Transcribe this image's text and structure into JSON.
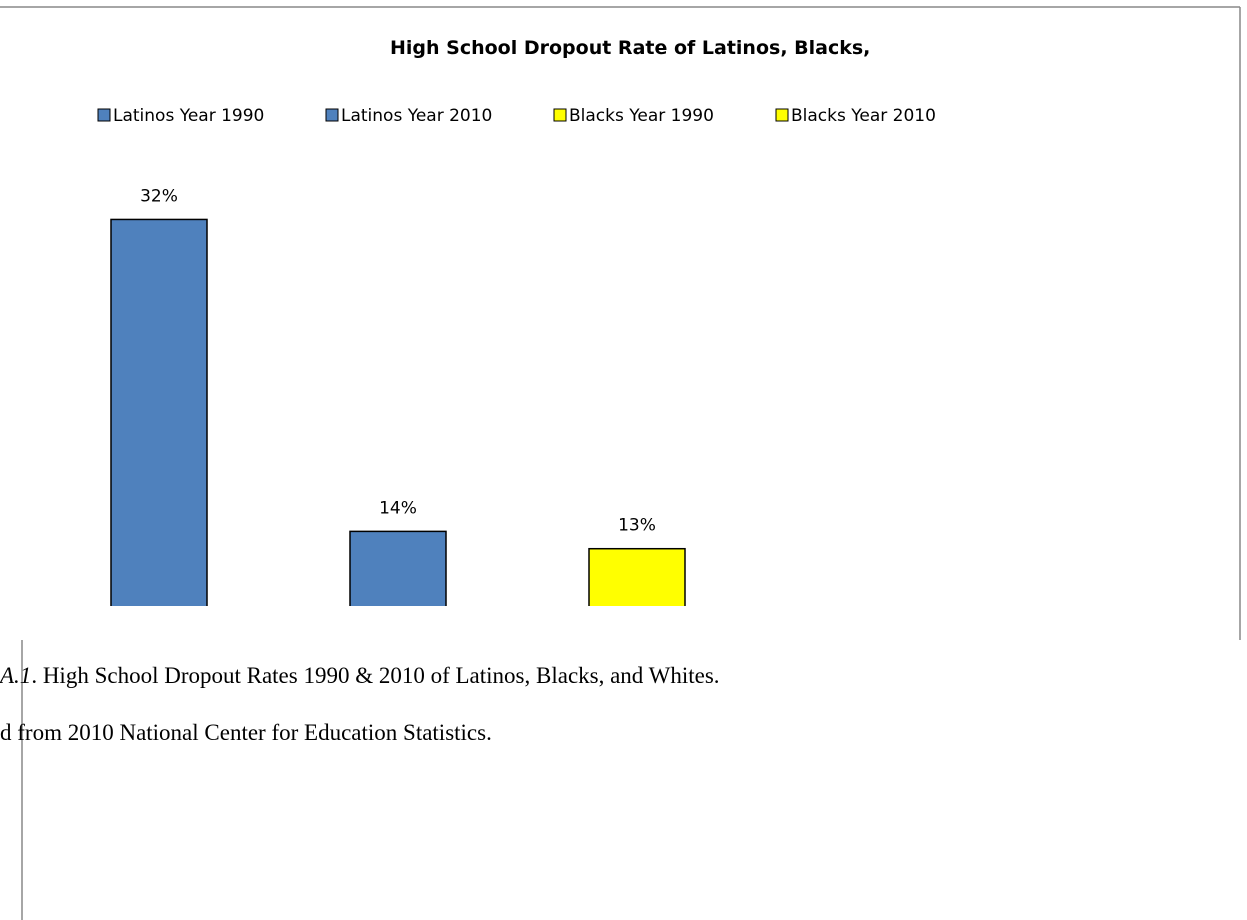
{
  "chart_data": {
    "type": "bar",
    "title": "High School Dropout Rate of Latinos, Blacks,",
    "series": [
      {
        "name": "Latinos Year 1990",
        "color": "#4f81bd",
        "values": [
          32
        ],
        "value_labels": [
          "32%"
        ]
      },
      {
        "name": "Latinos Year 2010",
        "color": "#4f81bd",
        "values": [
          14
        ],
        "value_labels": [
          "14%"
        ]
      },
      {
        "name": "Blacks  Year 1990",
        "color": "#ffff00",
        "values": [
          13
        ],
        "value_labels": [
          "13%"
        ]
      },
      {
        "name": "Blacks Year 2010",
        "color": "#ffff00",
        "values": [
          null
        ],
        "value_labels": [
          null
        ]
      }
    ]
  },
  "caption": {
    "label": "A.1",
    "text": ". High School Dropout Rates 1990 & 2010 of Latinos, Blacks, and Whites."
  },
  "source": "d from 2010 National Center for Education Statistics."
}
